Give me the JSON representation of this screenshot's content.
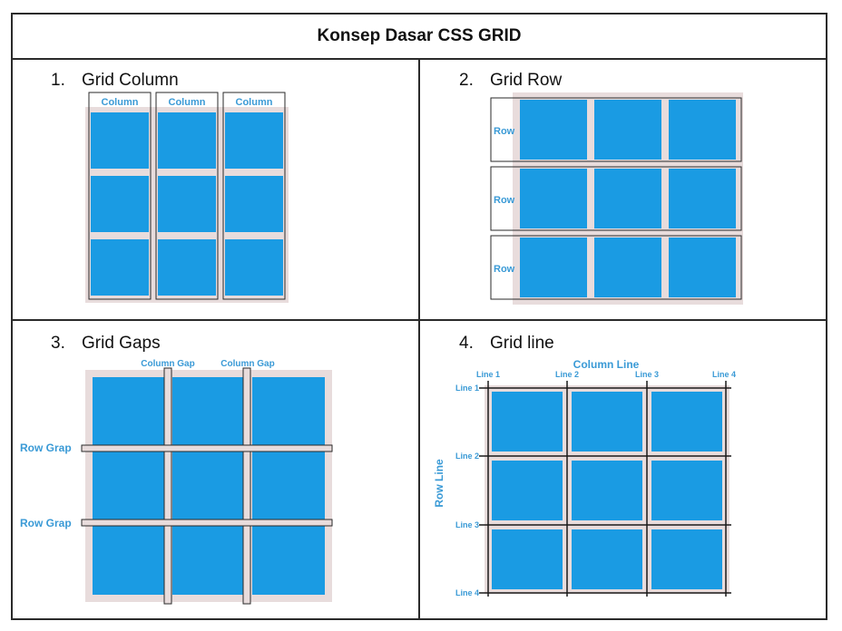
{
  "document": {
    "title": "Konsep Dasar CSS GRID",
    "sections": [
      {
        "number": "1.",
        "heading": "Grid Column",
        "labels": [
          "Column",
          "Column",
          "Column"
        ]
      },
      {
        "number": "2.",
        "heading": "Grid Row",
        "labels": [
          "Row",
          "Row",
          "Row"
        ]
      },
      {
        "number": "3.",
        "heading": "Grid Gaps",
        "column_gap_labels": [
          "Column Gap",
          "Column Gap"
        ],
        "row_gap_labels": [
          "Row Grap",
          "Row Grap"
        ]
      },
      {
        "number": "4.",
        "heading": "Grid line",
        "column_line_title": "Column Line",
        "row_line_title": "Row Line",
        "column_lines": [
          "Line 1",
          "Line 2",
          "Line 3",
          "Line 4"
        ],
        "row_lines": [
          "Line 1",
          "Line 2",
          "Line 3",
          "Line 4"
        ]
      }
    ]
  },
  "colors": {
    "cell": "#1a9be3",
    "frame": "#e8dcdc",
    "border": "#2a2a2a",
    "label": "#3a9ad6"
  }
}
